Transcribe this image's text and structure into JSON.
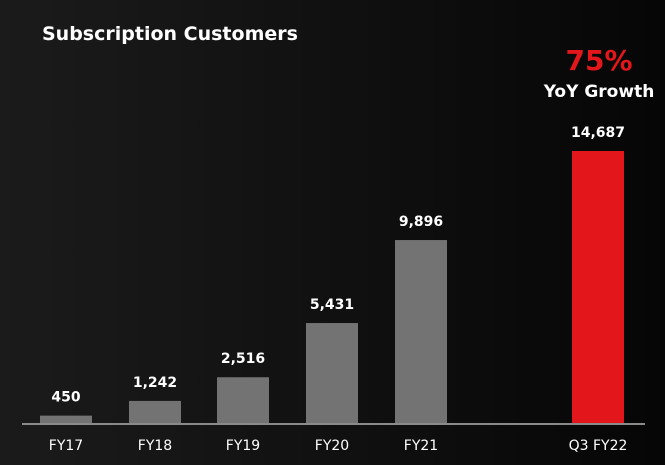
{
  "chart_data": {
    "type": "bar",
    "title": "Subscription Customers",
    "categories": [
      "FY17",
      "FY18",
      "FY19",
      "FY20",
      "FY21",
      "Q3 FY22"
    ],
    "values": [
      450,
      1242,
      2516,
      5431,
      9896,
      14687
    ],
    "value_labels": [
      "450",
      "1,242",
      "2,516",
      "5,431",
      "9,896",
      "14,687"
    ],
    "xlabel": "",
    "ylabel": "",
    "ylim": [
      0,
      14687
    ],
    "grid": false,
    "annotation": {
      "value": "75%",
      "label": "YoY Growth"
    },
    "colors": {
      "default_bar": "#737373",
      "highlight_bar": "#e3161b",
      "accent_text": "#e3161b",
      "axis": "#8a8a8a"
    },
    "highlight_index": 5
  }
}
